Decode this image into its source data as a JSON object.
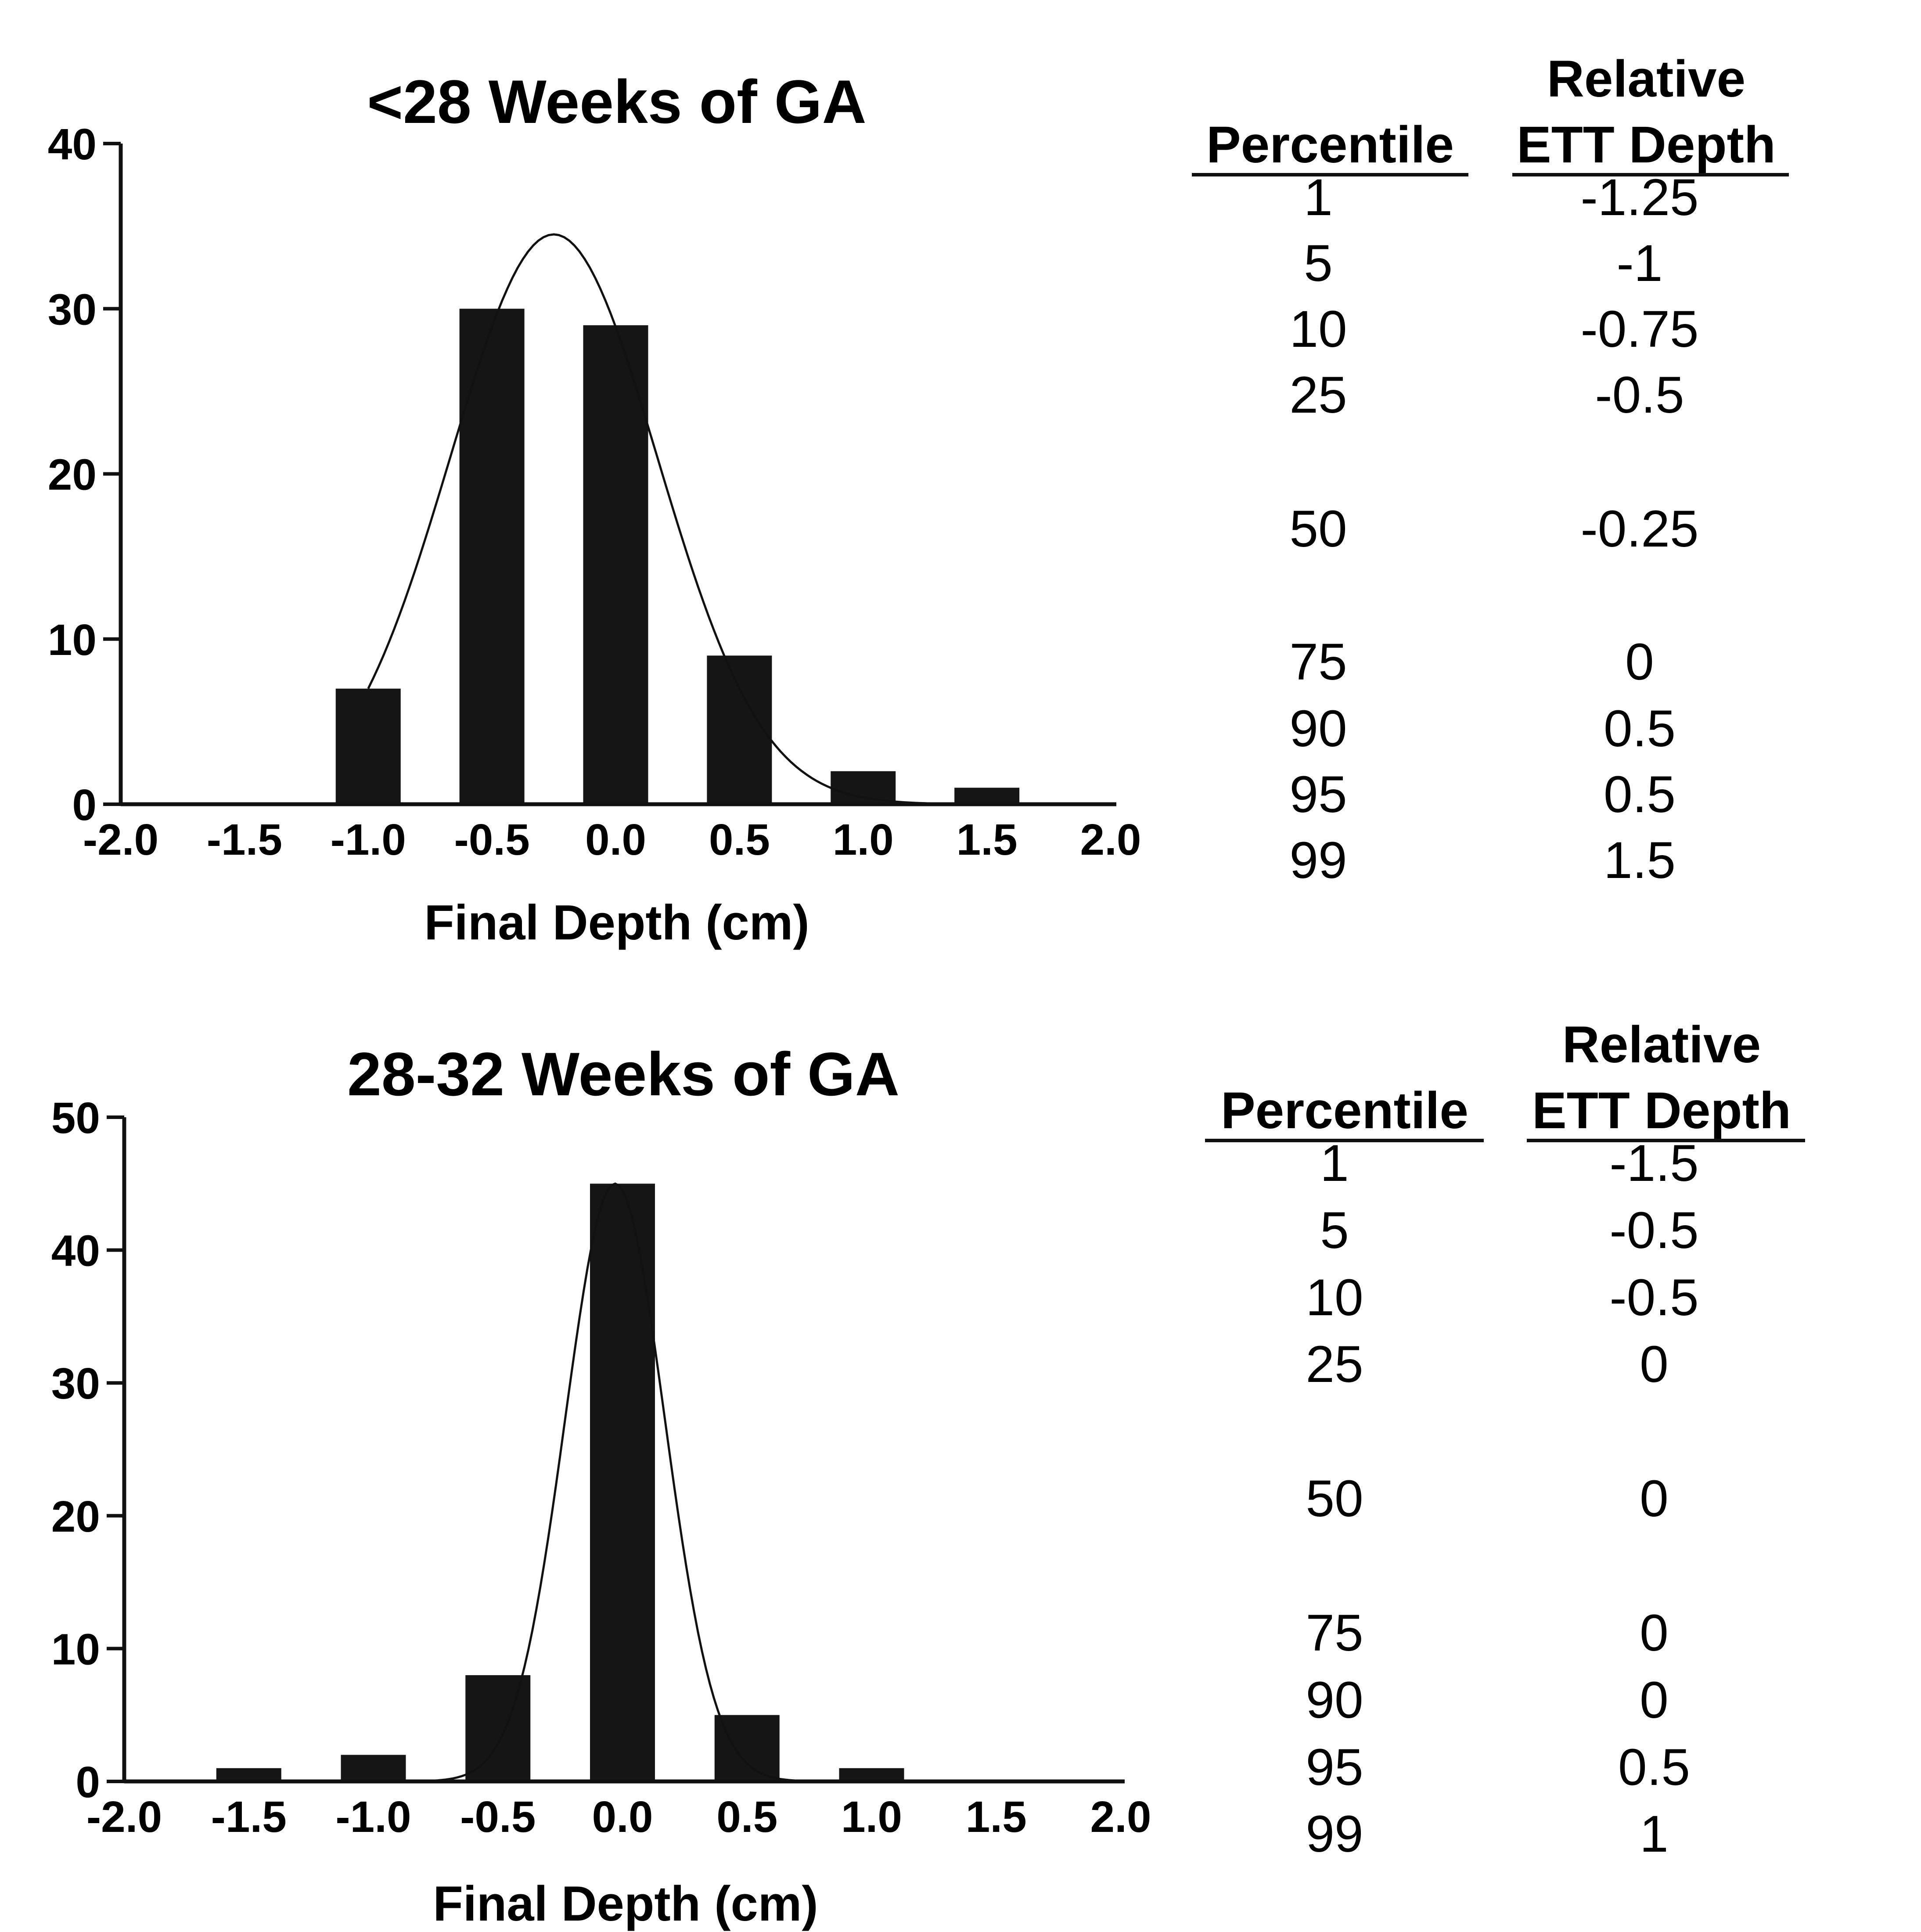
{
  "chart_data": [
    {
      "type": "bar",
      "title": "<28 Weeks of GA",
      "xlabel": "Final Depth (cm)",
      "ylabel": "",
      "xlim": [
        -2.0,
        2.0
      ],
      "ylim": [
        0,
        40
      ],
      "x_ticks": [
        "-2.0",
        "-1.5",
        "-1.0",
        "-0.5",
        "0.0",
        "0.5",
        "1.0",
        "1.5",
        "2.0"
      ],
      "y_ticks": [
        "0",
        "10",
        "20",
        "30",
        "40"
      ],
      "categories": [
        "-1.0",
        "-0.5",
        "0.0",
        "0.5",
        "1.0",
        "1.5"
      ],
      "x": [
        -1.0,
        -0.5,
        0.0,
        0.5,
        1.0,
        1.5
      ],
      "values": [
        7,
        30,
        29,
        9,
        2,
        1
      ],
      "fit_curve": {
        "type": "normal",
        "peak_x": -0.25,
        "peak_y": 34.5,
        "x_range": [
          -1.0,
          1.5
        ]
      },
      "grid": false,
      "table": {
        "headers": [
          "Percentile",
          "Relative",
          "ETT Depth"
        ],
        "rows": [
          [
            "1",
            "-1.25"
          ],
          [
            "5",
            "-1"
          ],
          [
            "10",
            "-0.75"
          ],
          [
            "25",
            "-0.5"
          ],
          [
            "50",
            "-0.25"
          ],
          [
            "75",
            "0"
          ],
          [
            "90",
            "0.5"
          ],
          [
            "95",
            "0.5"
          ],
          [
            "99",
            "1.5"
          ]
        ]
      }
    },
    {
      "type": "bar",
      "title": "28-32 Weeks of GA",
      "xlabel": "Final Depth (cm)",
      "ylabel": "",
      "xlim": [
        -2.0,
        2.0
      ],
      "ylim": [
        0,
        50
      ],
      "x_ticks": [
        "-2.0",
        "-1.5",
        "-1.0",
        "-0.5",
        "0.0",
        "0.5",
        "1.0",
        "1.5",
        "2.0"
      ],
      "y_ticks": [
        "0",
        "10",
        "20",
        "30",
        "40",
        "50"
      ],
      "categories": [
        "-1.5",
        "-1.0",
        "-0.5",
        "0.0",
        "0.5",
        "1.0"
      ],
      "x": [
        -1.5,
        -1.0,
        -0.5,
        0.0,
        0.5,
        1.0
      ],
      "values": [
        1,
        2,
        8,
        45,
        5,
        1
      ],
      "fit_curve": {
        "type": "normal",
        "peak_x": -0.03,
        "peak_y": 45,
        "x_range": [
          -0.9,
          1.0
        ]
      },
      "grid": false,
      "table": {
        "headers": [
          "Percentile",
          "Relative",
          "ETT Depth"
        ],
        "rows": [
          [
            "1",
            "-1.5"
          ],
          [
            "5",
            "-0.5"
          ],
          [
            "10",
            "-0.5"
          ],
          [
            "25",
            "0"
          ],
          [
            "50",
            "0"
          ],
          [
            "75",
            "0"
          ],
          [
            "90",
            "0"
          ],
          [
            "95",
            "0.5"
          ],
          [
            "99",
            "1"
          ]
        ]
      }
    }
  ],
  "style": {
    "bar_color": "#151515",
    "axis_color": "#111111",
    "curve_color": "#111111"
  }
}
